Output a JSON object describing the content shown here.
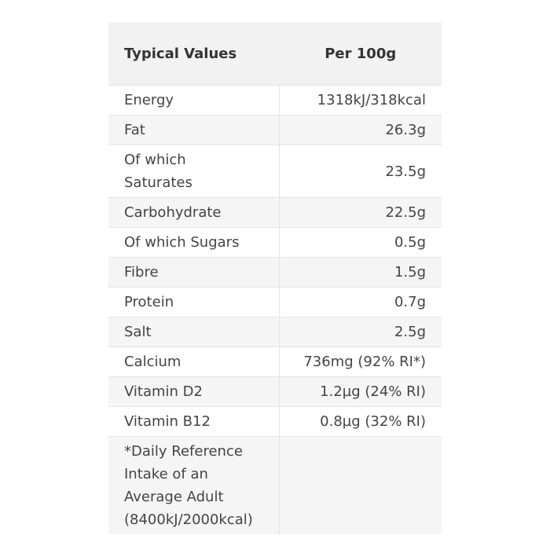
{
  "table": {
    "header": [
      "Typical Values",
      "Per 100g"
    ],
    "rows": [
      [
        "Energy",
        "1318kJ/318kcal"
      ],
      [
        "Fat",
        "26.3g"
      ],
      [
        "Of which Saturates",
        "23.5g"
      ],
      [
        "Carbohydrate",
        "22.5g"
      ],
      [
        "Of which Sugars",
        "0.5g"
      ],
      [
        "Fibre",
        "1.5g"
      ],
      [
        "Protein",
        "0.7g"
      ],
      [
        "Salt",
        "2.5g"
      ],
      [
        "Calcium",
        "736mg (92% RI*)"
      ],
      [
        "Vitamin D2",
        "1.2µg (24% RI)"
      ],
      [
        "Vitamin B12",
        "0.8µg (32% RI)"
      ]
    ],
    "footnote": [
      "*Daily Reference",
      "Intake of an",
      "Average Adult",
      "(8400kJ/2000kcal)"
    ]
  }
}
